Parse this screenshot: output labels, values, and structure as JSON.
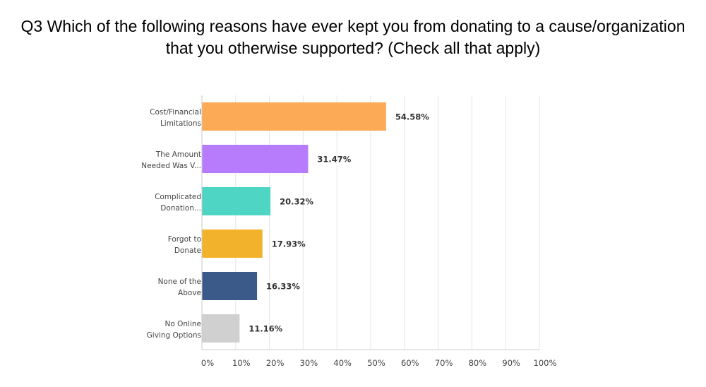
{
  "title_lines": [
    "Q3 Which of the following reasons have ever kept you from donating to a cause/organization",
    "that you otherwise supported? (Check all that apply)"
  ],
  "chart_data": {
    "type": "bar",
    "orientation": "horizontal",
    "title": "Q3 Which of the following reasons have ever kept you from donating to a cause/organization that you otherwise supported? (Check all that apply)",
    "categories": [
      [
        "Cost/Financial",
        "Limitations"
      ],
      [
        "The Amount",
        "Needed Was V..."
      ],
      [
        "Complicated",
        "Donation..."
      ],
      [
        "Forgot to",
        "Donate"
      ],
      [
        "None of the",
        "Above"
      ],
      [
        "No Online",
        "Giving Options"
      ]
    ],
    "values": [
      54.58,
      31.47,
      20.32,
      17.93,
      16.33,
      11.16
    ],
    "value_labels": [
      "54.58%",
      "31.47%",
      "20.32%",
      "17.93%",
      "16.33%",
      "11.16%"
    ],
    "colors": [
      "#fcaa55",
      "#b77cfc",
      "#4fd5c4",
      "#f2b22c",
      "#3b5a8a",
      "#d0d0d0"
    ],
    "xlim": [
      0,
      100
    ],
    "x_ticks": [
      "0%",
      "10%",
      "20%",
      "30%",
      "40%",
      "50%",
      "60%",
      "70%",
      "80%",
      "90%",
      "100%"
    ],
    "grid": true,
    "grid_color": "#e6e6e6",
    "axis_color": "#c8c8c8",
    "label_color": "#444444"
  }
}
